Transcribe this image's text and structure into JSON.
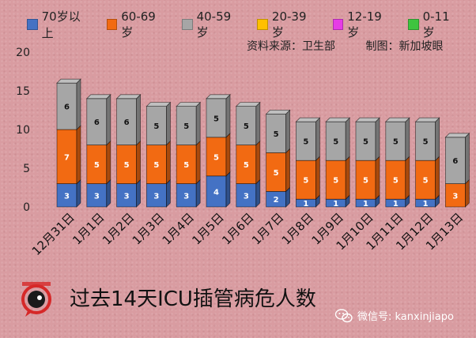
{
  "legend": [
    {
      "label": "70岁以上",
      "color": "#4472c4"
    },
    {
      "label": "60-69岁",
      "color": "#f26a12"
    },
    {
      "label": "40-59岁",
      "color": "#a6a6a6"
    },
    {
      "label": "20-39岁",
      "color": "#ffc000"
    },
    {
      "label": "12-19岁",
      "color": "#e63ce6"
    },
    {
      "label": "0-11岁",
      "color": "#3fc43f"
    }
  ],
  "source": {
    "data_source": "资料来源：卫生部",
    "made_by": "制图：新加坡眼"
  },
  "title": "过去14天ICU插管病危人数",
  "watermark": {
    "account": "微信号: kanxinjiapo",
    "icon": "wechat-icon"
  },
  "logo": {
    "icon": "kanxinjiapo-logo"
  },
  "chart_data": {
    "type": "bar",
    "stacked": true,
    "categories": [
      "12月31日",
      "1月1日",
      "1月2日",
      "1月3日",
      "1月4日",
      "1月5日",
      "1月6日",
      "1月7日",
      "1月8日",
      "1月9日",
      "1月10日",
      "1月11日",
      "1月12日",
      "1月13日"
    ],
    "series": [
      {
        "name": "70岁以上",
        "color": "#4472c4",
        "values": [
          3,
          3,
          3,
          3,
          3,
          4,
          3,
          2,
          1,
          1,
          1,
          1,
          1,
          0
        ]
      },
      {
        "name": "60-69岁",
        "color": "#f26a12",
        "values": [
          7,
          5,
          5,
          5,
          5,
          5,
          5,
          5,
          5,
          5,
          5,
          5,
          5,
          3
        ]
      },
      {
        "name": "40-59岁",
        "color": "#a6a6a6",
        "values": [
          6,
          6,
          6,
          5,
          5,
          5,
          5,
          5,
          5,
          5,
          5,
          5,
          5,
          6
        ]
      }
    ],
    "title": "过去14天ICU插管病危人数",
    "xlabel": "",
    "ylabel": "",
    "ylim": [
      0,
      20
    ],
    "yticks": [
      0,
      5,
      10,
      15,
      20
    ],
    "grid": false,
    "legend_position": "top"
  }
}
